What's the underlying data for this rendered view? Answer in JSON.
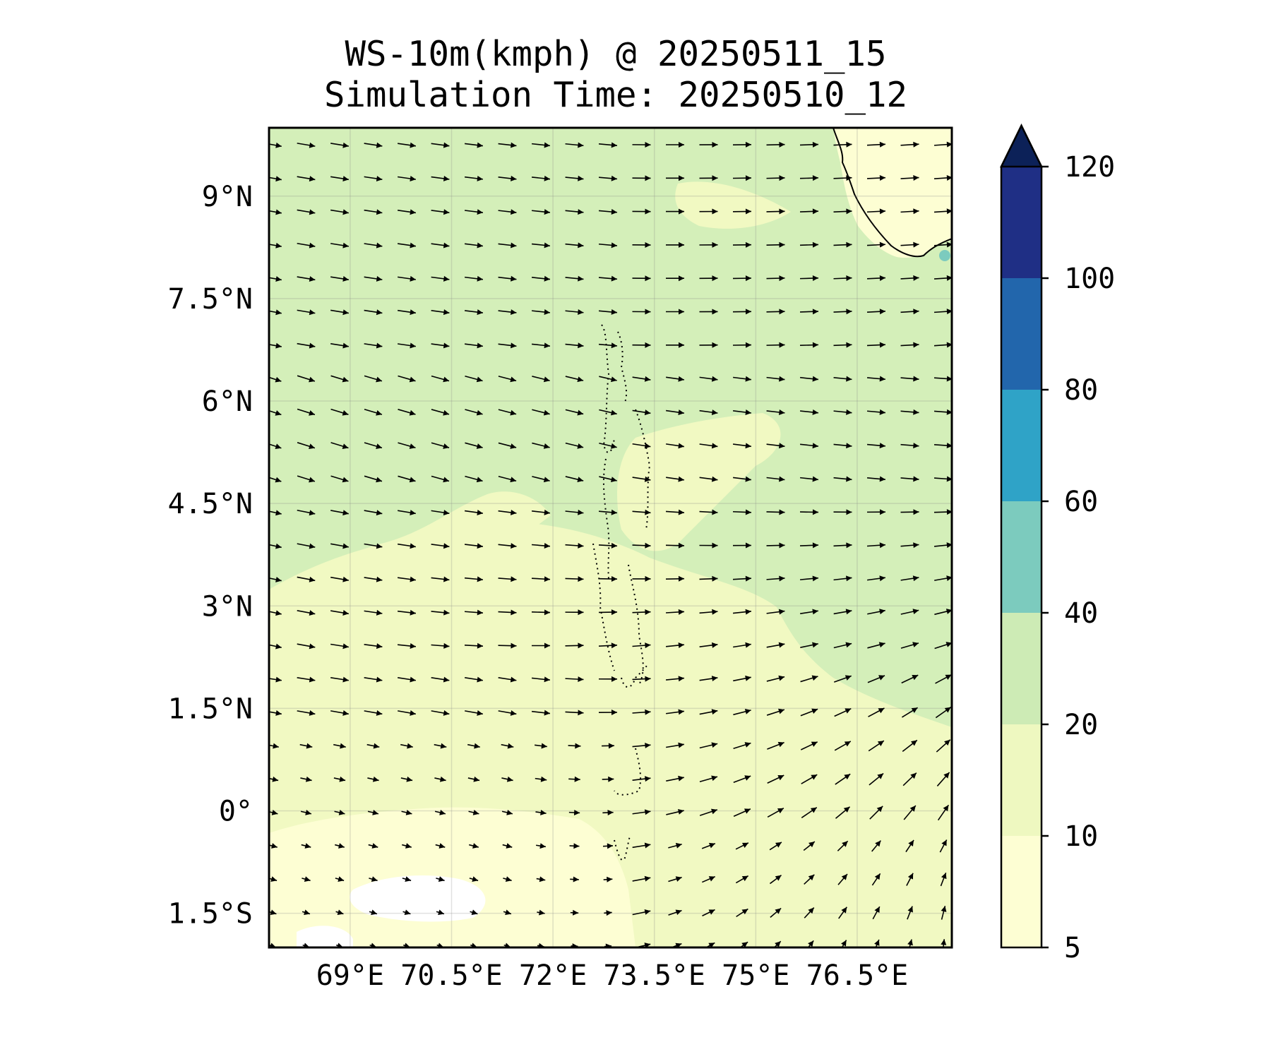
{
  "title": {
    "line1": "WS-10m(kmph) @ 20250511_15",
    "line2": "Simulation Time: 20250510_12"
  },
  "map": {
    "lon_range": [
      67.8,
      77.9
    ],
    "lat_range": [
      -2.0,
      10.0
    ],
    "lon_ticks": [
      69,
      70.5,
      72,
      73.5,
      75,
      76.5
    ],
    "lon_tick_labels": [
      "69°E",
      "70.5°E",
      "72°E",
      "73.5°E",
      "75°E",
      "76.5°E"
    ],
    "lat_ticks": [
      -1.5,
      0,
      1.5,
      3,
      4.5,
      6,
      7.5,
      9
    ],
    "lat_tick_labels": [
      "1.5°S",
      "0°",
      "1.5°N",
      "3°N",
      "4.5°N",
      "6°N",
      "7.5°N",
      "9°N"
    ],
    "gridlines": true,
    "background_colors": {
      "very_light": "#fdfed3",
      "light": "#f1f9c2",
      "medium": "#d4efb9",
      "white_patch": "#ffffff"
    },
    "coastline_color": "#000000",
    "arrow_color": "#000000"
  },
  "colorbar": {
    "levels": [
      5,
      10,
      20,
      40,
      60,
      80,
      100,
      120
    ],
    "tick_labels": [
      "5",
      "10",
      "20",
      "40",
      "60",
      "80",
      "100",
      "120"
    ],
    "colors": [
      "#fdfed3",
      "#eef8c0",
      "#cdebb5",
      "#7ccbbe",
      "#2fa3c7",
      "#2266ac",
      "#1f2f85"
    ],
    "extend_color": "#0c2158",
    "extend": "max"
  }
}
